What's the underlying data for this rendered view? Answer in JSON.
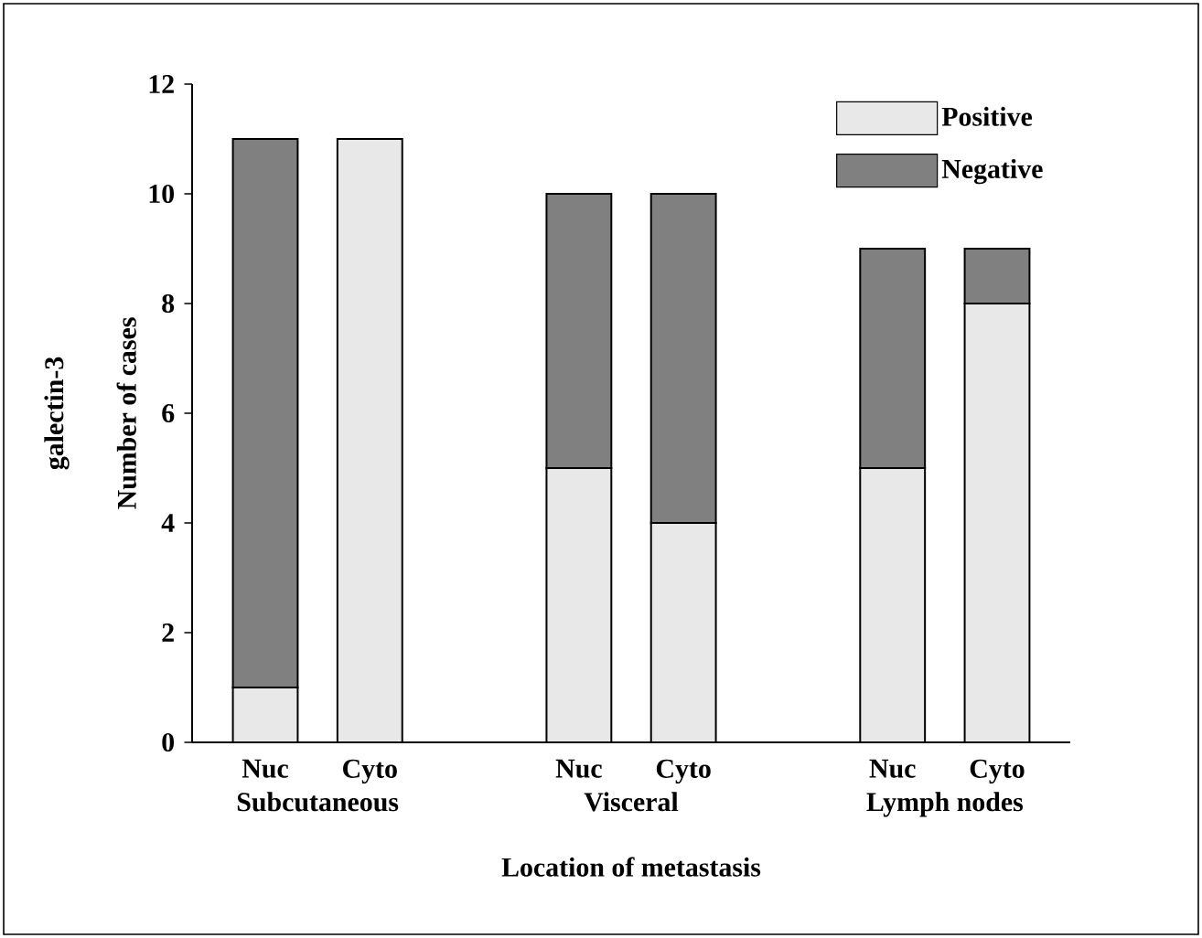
{
  "chart_data": {
    "type": "bar",
    "stacked": true,
    "title": "galectin-3",
    "ylabel": "Number of cases",
    "xlabel": "Location of metastasis",
    "categories": [
      "Nuc",
      "Cyto",
      null,
      "Nuc",
      "Cyto",
      null,
      "Nuc",
      "Cyto"
    ],
    "series": [
      {
        "name": "Positive",
        "color": "#e8e8e8",
        "values": [
          1,
          11,
          null,
          5,
          4,
          null,
          5,
          8
        ]
      },
      {
        "name": "Negative",
        "color": "#808080",
        "values": [
          10,
          0,
          null,
          5,
          6,
          null,
          4,
          1
        ]
      }
    ],
    "annotations": [
      "Subcutaneous",
      "Visceral",
      "Lymph nodes"
    ],
    "ylim": [
      0,
      12
    ],
    "yticks": [
      0,
      2,
      4,
      6,
      8,
      10,
      12
    ],
    "grid": false,
    "legend": "top right"
  }
}
